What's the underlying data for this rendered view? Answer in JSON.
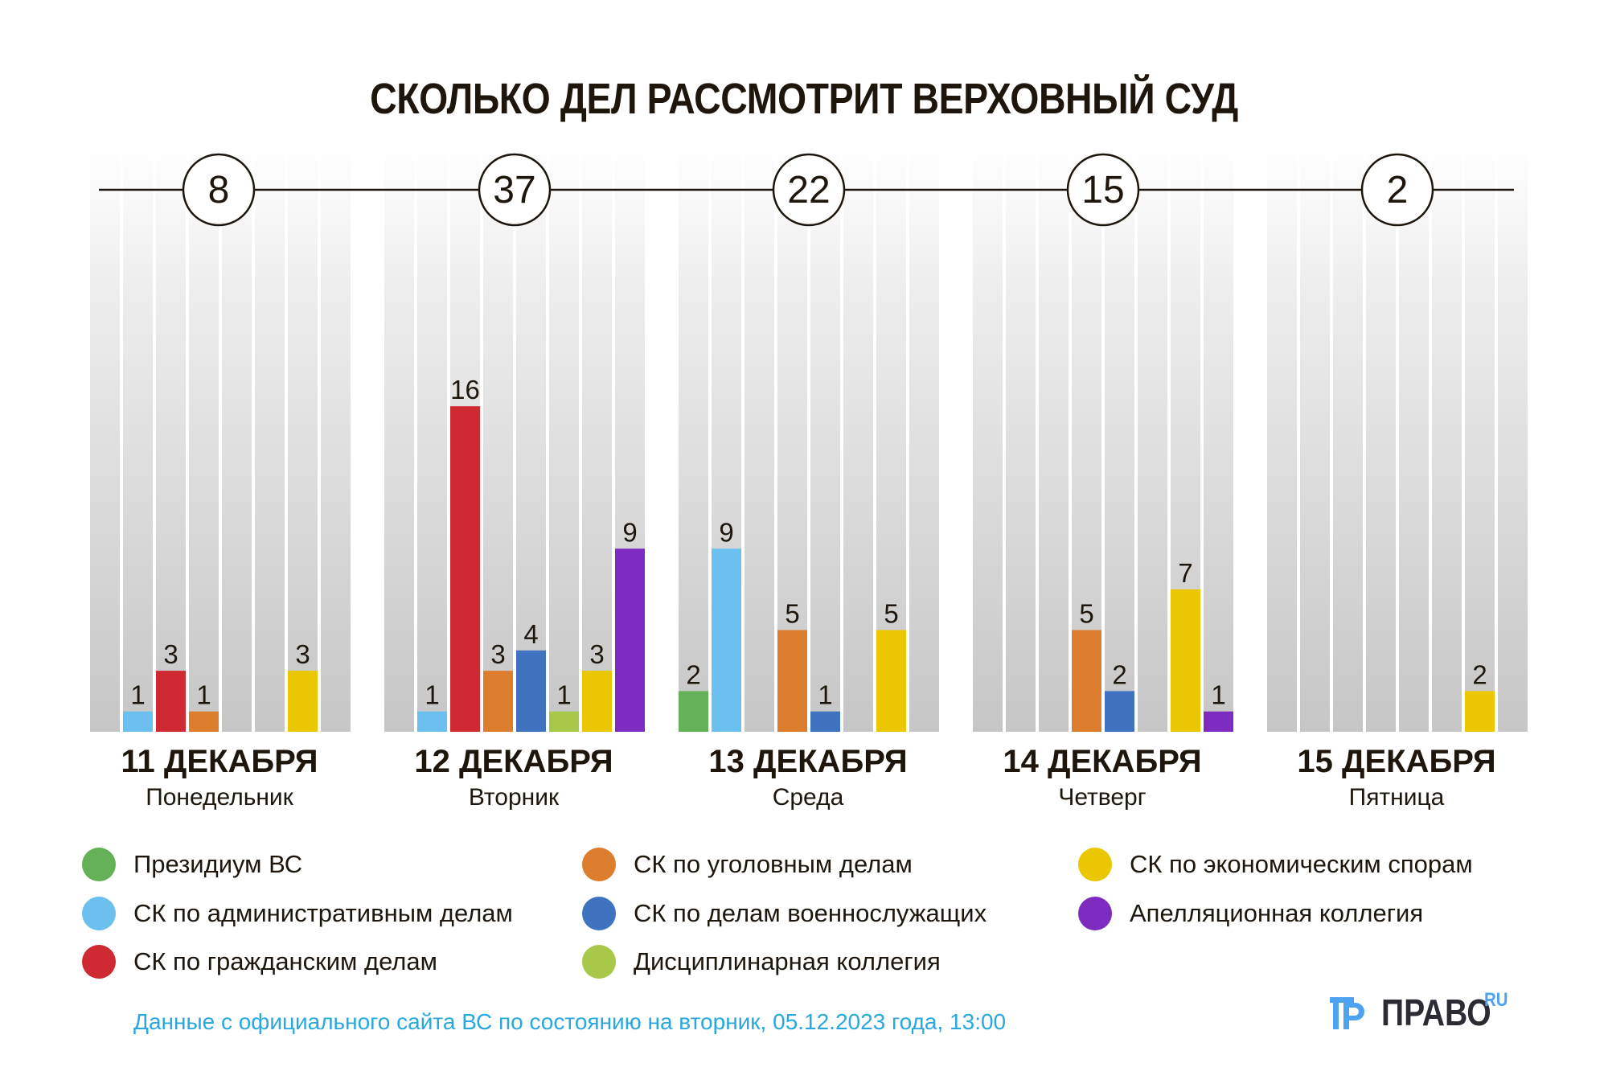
{
  "title": "СКОЛЬКО ДЕЛ РАССМОТРИТ ВЕРХОВНЫЙ СУД",
  "footer": "Данные с официального сайта ВС по состоянию на вторник, 05.12.2023 года, 13:00",
  "logo": {
    "word": "ПРАВО",
    "suffix": "RU",
    "icon": "pravo-logo-icon"
  },
  "chart_data": {
    "type": "bar",
    "title": "СКОЛЬКО ДЕЛ РАССМОТРИТ ВЕРХОВНЫЙ СУД",
    "xlabel": "",
    "ylabel": "",
    "ylim": [
      0,
      28
    ],
    "grid": false,
    "legend_position": "bottom",
    "days": [
      {
        "date": "11 ДЕКАБРЯ",
        "weekday": "Понедельник",
        "total": "8"
      },
      {
        "date": "12 ДЕКАБРЯ",
        "weekday": "Вторник",
        "total": "37"
      },
      {
        "date": "13 ДЕКАБРЯ",
        "weekday": "Среда",
        "total": "22"
      },
      {
        "date": "14 ДЕКАБРЯ",
        "weekday": "Четверг",
        "total": "15"
      },
      {
        "date": "15 ДЕКАБРЯ",
        "weekday": "Пятница",
        "total": "2"
      }
    ],
    "series": [
      {
        "name": "Президиум ВС",
        "color": "#65b157",
        "values": [
          0,
          0,
          2,
          0,
          0
        ]
      },
      {
        "name": "СК по административным делам",
        "color": "#6cc0f0",
        "values": [
          1,
          1,
          9,
          0,
          0
        ]
      },
      {
        "name": "СК по гражданским делам",
        "color": "#cf2a31",
        "values": [
          3,
          16,
          0,
          0,
          0
        ]
      },
      {
        "name": "СК по уголовным делам",
        "color": "#dc7e2e",
        "values": [
          1,
          3,
          5,
          5,
          0
        ]
      },
      {
        "name": "СК по делам военнослужащих",
        "color": "#3f72bf",
        "values": [
          0,
          4,
          1,
          2,
          0
        ]
      },
      {
        "name": "Дисциплинарная коллегия",
        "color": "#a8c84a",
        "values": [
          0,
          1,
          0,
          0,
          0
        ]
      },
      {
        "name": "СК по экономическим спорам",
        "color": "#eac700",
        "values": [
          3,
          3,
          5,
          7,
          2
        ]
      },
      {
        "name": "Апелляционная коллегия",
        "color": "#7e2cbf",
        "values": [
          0,
          9,
          0,
          1,
          0
        ]
      }
    ]
  },
  "legend": {
    "columns": [
      [
        0,
        1,
        2
      ],
      [
        3,
        4,
        5
      ],
      [
        6,
        7
      ]
    ]
  }
}
